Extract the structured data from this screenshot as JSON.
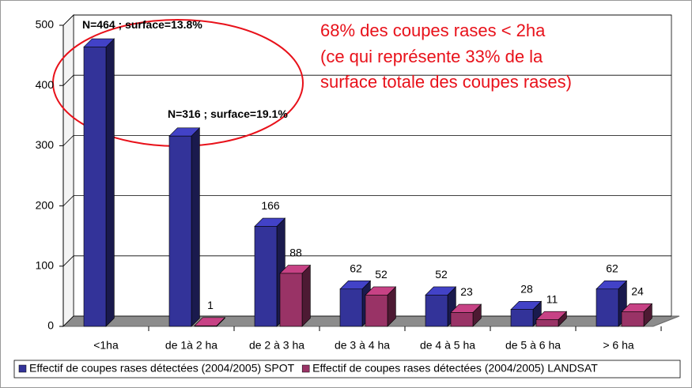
{
  "chart_data": {
    "type": "bar3d",
    "categories": [
      "<1ha",
      "de 1à 2 ha",
      "de 2 à 3 ha",
      "de 3 à 4 ha",
      "de 4 à 5 ha",
      "de 5 à 6 ha",
      "> 6 ha"
    ],
    "series": [
      {
        "name": "Effectif de coupes rases détectées (2004/2005) SPOT",
        "color": "#333399",
        "values": [
          464,
          316,
          166,
          62,
          52,
          28,
          62
        ],
        "value_labels": [
          "N=464 ; surface=13.8%",
          "N=316 ; surface=19.1%",
          null,
          null,
          null,
          null,
          null
        ]
      },
      {
        "name": "Effectif de coupes rases détectées (2004/2005) LANDSAT",
        "color": "#993366",
        "values": [
          null,
          1,
          88,
          52,
          23,
          11,
          24
        ]
      }
    ],
    "ylim": [
      0,
      500
    ],
    "yticks": [
      0,
      100,
      200,
      300,
      400,
      500
    ],
    "grid": true,
    "legend": "bottom",
    "annotation": [
      "68% des coupes rases < 2ha",
      "(ce qui représente 33% de la",
      "surface totale des coupes rases)"
    ]
  }
}
